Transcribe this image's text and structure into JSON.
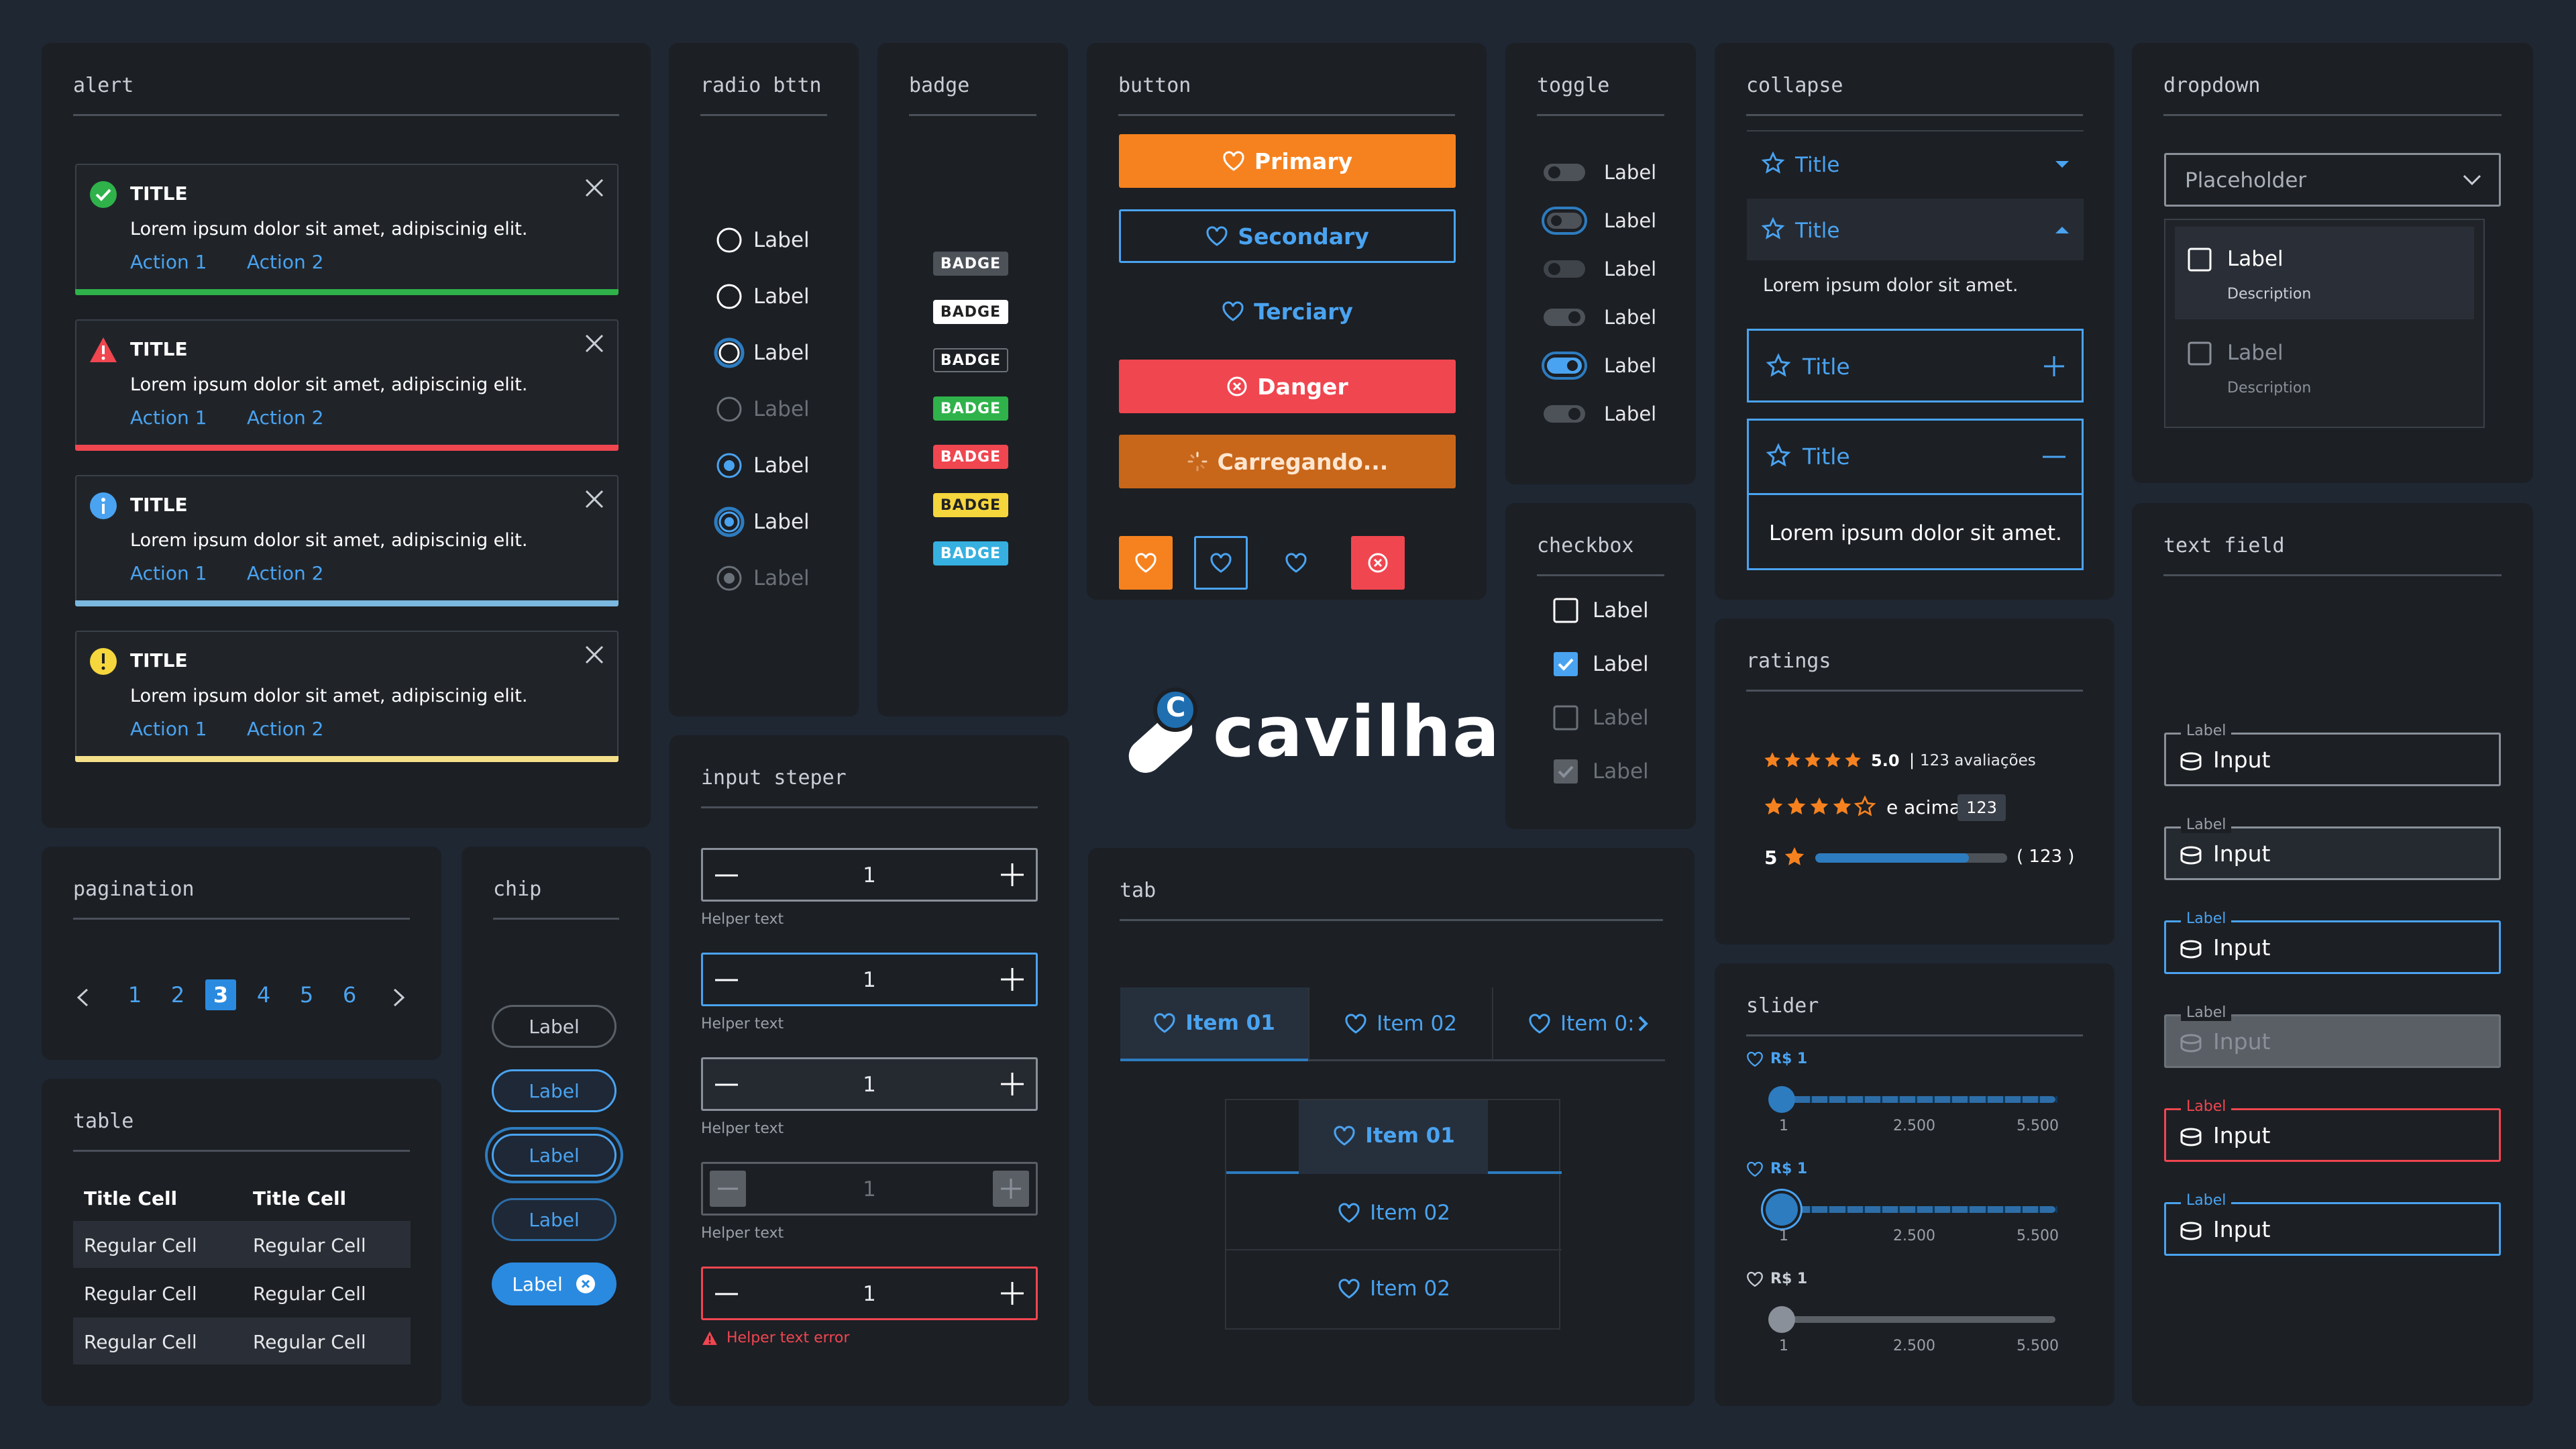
{
  "colors": {
    "bg": "#1f2733",
    "card": "#1c1f24",
    "blue": "#4aa3f0",
    "orange": "#f6821f",
    "red": "#f04650",
    "green": "#2fb24a",
    "yellow": "#f5d63d",
    "cyan": "#36b0e0"
  },
  "alert": {
    "title": "alert",
    "items": [
      {
        "title": "TITLE",
        "text": "Lorem ipsum dolor sit amet,  adipiscinig elit.",
        "action1": "Action 1",
        "action2": "Action  2",
        "status": "success"
      },
      {
        "title": "TITLE",
        "text": "Lorem ipsum dolor sit amet,  adipiscinig elit.",
        "action1": "Action 1",
        "action2": "Action  2",
        "status": "error"
      },
      {
        "title": "TITLE",
        "text": "Lorem ipsum dolor sit amet,  adipiscinig elit.",
        "action1": "Action 1",
        "action2": "Action  2",
        "status": "info"
      },
      {
        "title": "TITLE",
        "text": "Lorem ipsum dolor sit amet,  adipiscinig elit.",
        "action1": "Action 1",
        "action2": "Action  2",
        "status": "warning"
      }
    ]
  },
  "radio": {
    "title": "radio bttn",
    "labels": [
      "Label",
      "Label",
      "Label",
      "Label",
      "Label",
      "Label",
      "Label"
    ]
  },
  "badge": {
    "title": "badge",
    "items": [
      "BADGE",
      "BADGE",
      "BADGE",
      "BADGE",
      "BADGE",
      "BADGE",
      "BADGE"
    ]
  },
  "button": {
    "title": "button",
    "primary": "Primary",
    "secondary": "Secondary",
    "tertiary": "Terciary",
    "danger": "Danger",
    "loading": "Carregando..."
  },
  "toggle": {
    "title": "toggle",
    "labels": [
      "Label",
      "Label",
      "Label",
      "Label",
      "Label",
      "Label"
    ]
  },
  "checkbox": {
    "title": "checkbox",
    "labels": [
      "Label",
      "Label",
      "Label",
      "Label"
    ]
  },
  "collapse": {
    "title": "collapse",
    "items": [
      "Title",
      "Title",
      "Title",
      "Title"
    ],
    "body1": "Lorem ipsum dolor sit amet.",
    "body2": "Lorem ipsum dolor sit amet."
  },
  "dropdown": {
    "title": "dropdown",
    "placeholder": "Placeholder",
    "options": [
      {
        "label": "Label",
        "desc": "Description"
      },
      {
        "label": "Label",
        "desc": "Description"
      }
    ]
  },
  "text_field": {
    "title": "text field",
    "fields": [
      {
        "label": "Label",
        "value": "Input",
        "state": "default"
      },
      {
        "label": "Label",
        "value": "Input",
        "state": "filled"
      },
      {
        "label": "Label",
        "value": "Input",
        "state": "focus"
      },
      {
        "label": "Label",
        "value": "Input",
        "state": "disabled"
      },
      {
        "label": "Label",
        "value": "Input",
        "state": "error"
      },
      {
        "label": "Label",
        "value": "Input",
        "state": "active"
      }
    ]
  },
  "ratings": {
    "title": "ratings",
    "r1_score": "5.0",
    "r1_sep": "|",
    "r1_reviews": "123 avaliações",
    "r2_text": "e acima",
    "r2_count": "123",
    "r3_star": "5",
    "r3_count": "( 123 )",
    "r1_value": 5,
    "r2_value": 4,
    "r3_fill": 0.8
  },
  "slider": {
    "title": "slider",
    "label": "R$ 1",
    "ticks": [
      "1",
      "2.500",
      "5.500"
    ],
    "sliders": [
      {
        "value": 1
      },
      {
        "value": 1
      },
      {
        "value": 1
      }
    ]
  },
  "pagination": {
    "title": "pagination",
    "pages": [
      "1",
      "2",
      "3",
      "4",
      "5",
      "6"
    ],
    "current": "3"
  },
  "chip": {
    "title": "chip",
    "items": [
      "Label",
      "Label",
      "Label",
      "Label",
      "Label"
    ]
  },
  "table": {
    "title": "table",
    "headers": [
      "Title Cell",
      "Title Cell"
    ],
    "rows": [
      [
        "Regular Cell",
        "Regular Cell"
      ],
      [
        "Regular Cell",
        "Regular Cell"
      ],
      [
        "Regular Cell",
        "Regular Cell"
      ]
    ]
  },
  "stepper": {
    "title": "input steper",
    "items": [
      {
        "value": "1",
        "helper": "Helper text",
        "state": "default"
      },
      {
        "value": "1",
        "helper": "Helper text",
        "state": "focus"
      },
      {
        "value": "1",
        "helper": "Helper text",
        "state": "filled"
      },
      {
        "value": "1",
        "helper": "Helper text",
        "state": "disabled"
      },
      {
        "value": "1",
        "helper": "Helper text error",
        "state": "error"
      }
    ]
  },
  "logo": {
    "text": "cavilha",
    "mark": "C"
  },
  "tab": {
    "title": "tab",
    "horizontal": [
      "Item 01",
      "Item 02",
      "Item 0:"
    ],
    "vertical": [
      "Item 01",
      "Item 02",
      "Item 02"
    ]
  }
}
